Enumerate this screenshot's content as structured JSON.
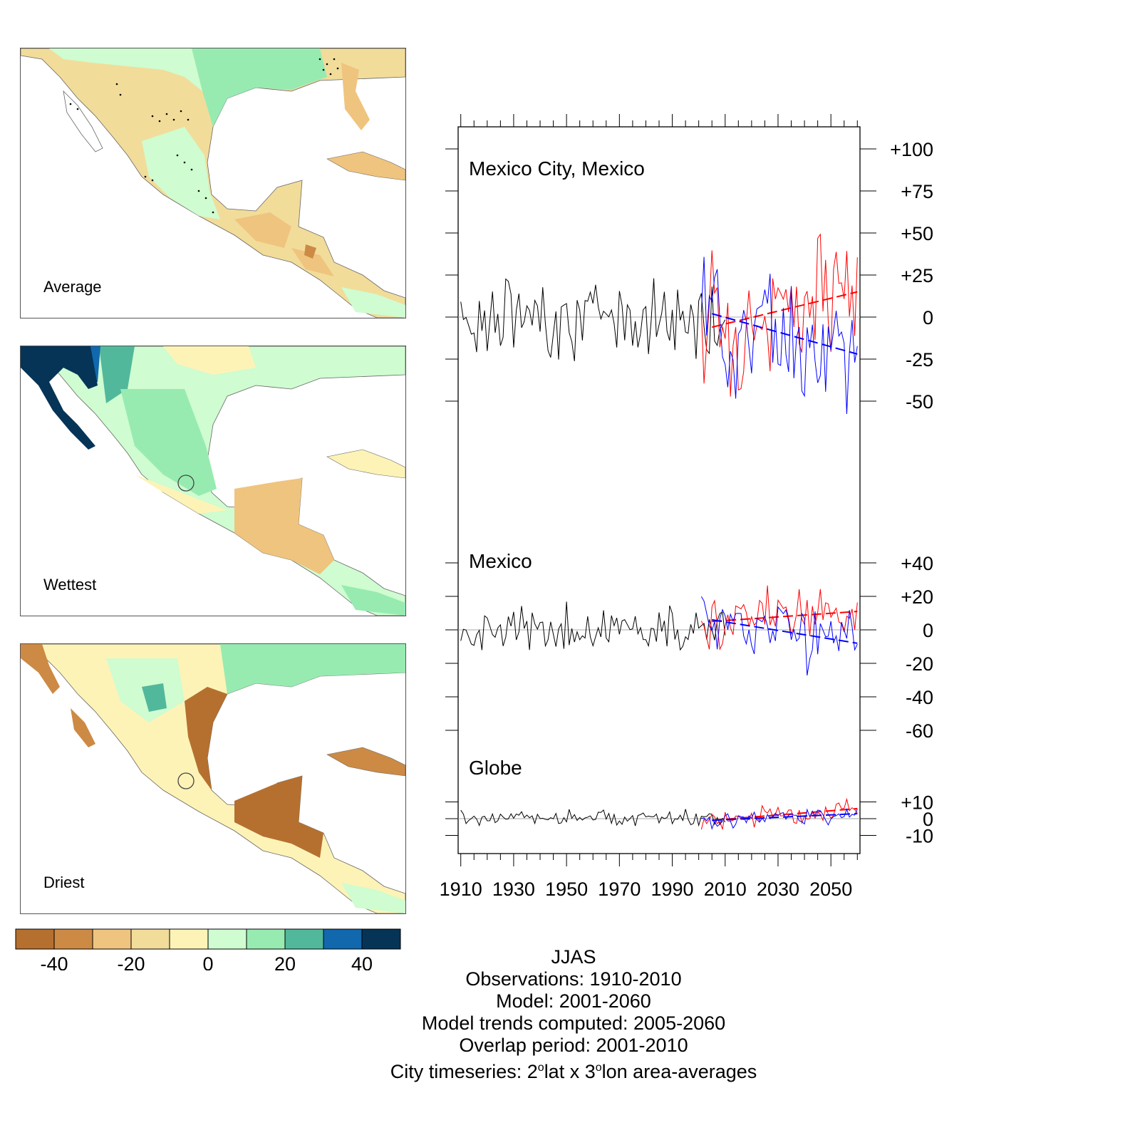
{
  "maps": [
    {
      "label": "Average",
      "name": "average"
    },
    {
      "label": "Wettest",
      "name": "wettest"
    },
    {
      "label": "Driest",
      "name": "driest"
    }
  ],
  "colorbar": {
    "colors": [
      "#b5702f",
      "#cc8a45",
      "#efc47e",
      "#f2dc9a",
      "#fdf3b7",
      "#cffcd0",
      "#97ebb1",
      "#52b89b",
      "#1168ad",
      "#053457"
    ],
    "ticks": [
      -40,
      -20,
      0,
      20,
      40
    ],
    "tick_labels": [
      "-40",
      "-20",
      "0",
      "20",
      "40"
    ],
    "range": [
      -50,
      50
    ]
  },
  "chart_data": {
    "type": "line",
    "x_axis": {
      "range": [
        1909,
        2061
      ],
      "ticks": [
        1910,
        1930,
        1950,
        1970,
        1990,
        2010,
        2030,
        2050
      ],
      "tick_labels": [
        "1910",
        "1930",
        "1950",
        "1970",
        "1990",
        "2010",
        "2030",
        "2050"
      ]
    },
    "series_colors": {
      "observations": "#000000",
      "model_a": "#ff0000",
      "model_b": "#0000ff",
      "zero_line": "#aaaaaa"
    },
    "panels": [
      {
        "title": "Mexico City, Mexico",
        "y_ticks": [
          100,
          75,
          50,
          25,
          0,
          -25,
          -50
        ],
        "y_tick_labels": [
          "+100",
          "+75",
          "+50",
          "+25",
          "0",
          "-25",
          "-50"
        ],
        "y_per_px": 0.4237,
        "obs_years": [
          1910,
          2010
        ],
        "model_years": [
          2001,
          2060
        ],
        "obs_amp": 15,
        "red_amp": 24,
        "blue_amp": 22,
        "trend_red": {
          "x": [
            2005,
            2060
          ],
          "y": [
            -6,
            15
          ]
        },
        "trend_blue": {
          "x": [
            2005,
            2060
          ],
          "y": [
            2,
            -22
          ]
        }
      },
      {
        "title": "Mexico",
        "y_ticks": [
          40,
          20,
          0,
          -20,
          -40,
          -60
        ],
        "y_tick_labels": [
          "+40",
          "+20",
          "0",
          "-20",
          "-40",
          "-60"
        ],
        "y_per_px": 0.4255,
        "obs_years": [
          1910,
          2010
        ],
        "model_years": [
          2001,
          2060
        ],
        "obs_amp": 9,
        "red_amp": 9,
        "blue_amp": 11,
        "trend_red": {
          "x": [
            2005,
            2060
          ],
          "y": [
            5,
            11
          ]
        },
        "trend_blue": {
          "x": [
            2005,
            2060
          ],
          "y": [
            6,
            -8
          ]
        }
      },
      {
        "title": "Globe",
        "y_ticks": [
          10,
          0,
          -10
        ],
        "y_tick_labels": [
          "+10",
          "0",
          "-10"
        ],
        "y_per_px": 0.4255,
        "obs_years": [
          1910,
          2010
        ],
        "model_years": [
          2001,
          2060
        ],
        "obs_amp": 3,
        "red_amp": 4,
        "blue_amp": 3,
        "trend_red": {
          "x": [
            2005,
            2060
          ],
          "y": [
            -1,
            6
          ]
        },
        "trend_blue": {
          "x": [
            2005,
            2060
          ],
          "y": [
            -1,
            3
          ]
        }
      }
    ]
  },
  "footer": {
    "season": "JJAS",
    "observations": "Observations: 1910-2010",
    "model": "Model: 2001-2060",
    "trends": "Model trends computed: 2005-2060",
    "overlap": "Overlap period: 2001-2010",
    "city_prefix": "City timeseries: 2",
    "city_sup1": "o",
    "city_mid": "lat x 3",
    "city_sup2": "o",
    "city_suffix": "lon area-averages"
  }
}
